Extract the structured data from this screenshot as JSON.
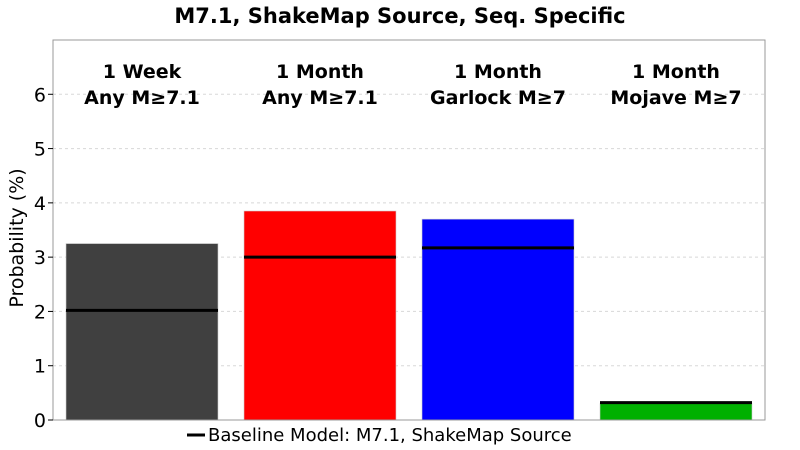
{
  "chart_data": {
    "type": "bar",
    "title": "M7.1, ShakeMap Source, Seq. Specific",
    "xlabel": "",
    "ylabel": "Probability (%)",
    "ylim": [
      0,
      7
    ],
    "yticks": [
      "0",
      "1",
      "2",
      "3",
      "4",
      "5",
      "6"
    ],
    "grid": "horizontal dashed",
    "legend_placement": "bottom-center",
    "categories": [
      {
        "line1": "1 Week",
        "line2": "Any M≥7.1"
      },
      {
        "line1": "1 Month",
        "line2": "Any M≥7.1"
      },
      {
        "line1": "1 Month",
        "line2": "Garlock M≥7"
      },
      {
        "line1": "1 Month",
        "line2": "Mojave M≥7"
      }
    ],
    "values": [
      3.25,
      3.85,
      3.7,
      0.3
    ],
    "colors": [
      "#404040",
      "#ff0000",
      "#0000ff",
      "#00b000"
    ],
    "baseline": {
      "name": "Baseline Model: M7.1, ShakeMap Source",
      "values": [
        2.02,
        3.0,
        3.17,
        0.32
      ],
      "color": "#000000"
    }
  }
}
